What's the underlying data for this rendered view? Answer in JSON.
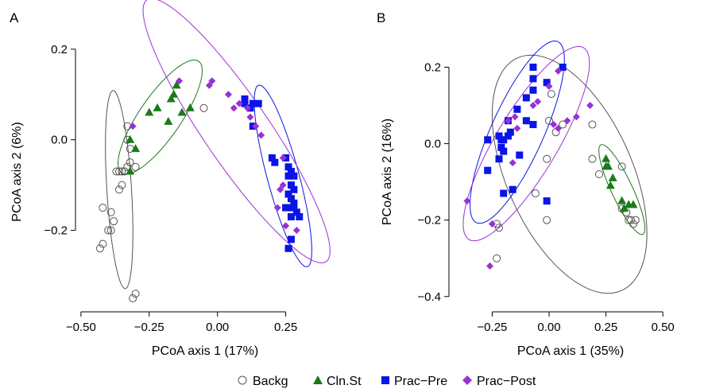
{
  "colors": {
    "Backg": "#555555",
    "Cln.St": "#1a7a1a",
    "Prac-Pre": "#0a14e6",
    "Prac-Post": "#9a30d6"
  },
  "legend": [
    {
      "label": "Backg",
      "shape": "open-circle",
      "color_key": "Backg"
    },
    {
      "label": "Cln.St",
      "shape": "triangle",
      "color_key": "Cln.St"
    },
    {
      "label": "Prac−Pre",
      "shape": "square",
      "color_key": "Prac-Pre"
    },
    {
      "label": "Prac−Post",
      "shape": "diamond",
      "color_key": "Prac-Post"
    }
  ],
  "chart_data": [
    {
      "type": "scatter",
      "panel_label": "A",
      "xlabel": "PCoA axis 1 (17%)",
      "ylabel": "PCoA axis 2 (6%)",
      "xlim": [
        -0.52,
        0.42
      ],
      "ylim": [
        -0.38,
        0.27
      ],
      "xticks": [
        -0.5,
        -0.25,
        0.0,
        0.25
      ],
      "xtick_labels": [
        "−0.50",
        "−0.25",
        "0.00",
        "0.25"
      ],
      "yticks": [
        -0.2,
        0.0,
        0.2
      ],
      "ytick_labels": [
        "−0.2",
        "0.0",
        "0.2"
      ],
      "series": [
        {
          "name": "Backg",
          "points": [
            [
              -0.33,
              0.03
            ],
            [
              -0.33,
              0.0
            ],
            [
              -0.32,
              -0.02
            ],
            [
              -0.3,
              -0.06
            ],
            [
              -0.32,
              -0.05
            ],
            [
              -0.33,
              -0.06
            ],
            [
              -0.34,
              -0.07
            ],
            [
              -0.35,
              -0.07
            ],
            [
              -0.36,
              -0.07
            ],
            [
              -0.37,
              -0.07
            ],
            [
              -0.35,
              -0.1
            ],
            [
              -0.36,
              -0.11
            ],
            [
              -0.42,
              -0.15
            ],
            [
              -0.39,
              -0.16
            ],
            [
              -0.38,
              -0.18
            ],
            [
              -0.39,
              -0.2
            ],
            [
              -0.4,
              -0.2
            ],
            [
              -0.42,
              -0.23
            ],
            [
              -0.43,
              -0.24
            ],
            [
              -0.3,
              -0.34
            ],
            [
              -0.31,
              -0.35
            ],
            [
              -0.05,
              0.07
            ]
          ]
        },
        {
          "name": "Cln.St",
          "points": [
            [
              -0.15,
              0.12
            ],
            [
              -0.16,
              0.1
            ],
            [
              -0.17,
              0.09
            ],
            [
              -0.22,
              0.07
            ],
            [
              -0.25,
              0.06
            ],
            [
              -0.1,
              0.07
            ],
            [
              -0.13,
              0.06
            ],
            [
              -0.18,
              0.04
            ],
            [
              -0.32,
              0.0
            ],
            [
              -0.3,
              -0.02
            ],
            [
              -0.32,
              -0.07
            ]
          ]
        },
        {
          "name": "Prac-Pre",
          "points": [
            [
              0.1,
              0.09
            ],
            [
              0.1,
              0.08
            ],
            [
              0.13,
              0.08
            ],
            [
              0.15,
              0.08
            ],
            [
              0.12,
              0.07
            ],
            [
              0.13,
              0.03
            ],
            [
              0.2,
              -0.04
            ],
            [
              0.21,
              -0.05
            ],
            [
              0.25,
              -0.04
            ],
            [
              0.26,
              -0.06
            ],
            [
              0.27,
              -0.07
            ],
            [
              0.28,
              -0.08
            ],
            [
              0.26,
              -0.08
            ],
            [
              0.27,
              -0.1
            ],
            [
              0.28,
              -0.11
            ],
            [
              0.26,
              -0.12
            ],
            [
              0.27,
              -0.13
            ],
            [
              0.28,
              -0.14
            ],
            [
              0.25,
              -0.15
            ],
            [
              0.27,
              -0.15
            ],
            [
              0.28,
              -0.15
            ],
            [
              0.29,
              -0.16
            ],
            [
              0.27,
              -0.17
            ],
            [
              0.3,
              -0.17
            ],
            [
              0.27,
              -0.22
            ],
            [
              0.26,
              -0.24
            ]
          ]
        },
        {
          "name": "Prac-Post",
          "points": [
            [
              -0.31,
              0.03
            ],
            [
              -0.14,
              0.13
            ],
            [
              -0.02,
              0.13
            ],
            [
              -0.03,
              0.12
            ],
            [
              0.04,
              0.1
            ],
            [
              0.08,
              0.08
            ],
            [
              0.06,
              0.07
            ],
            [
              0.11,
              0.07
            ],
            [
              0.12,
              0.05
            ],
            [
              0.14,
              0.03
            ],
            [
              0.16,
              0.01
            ],
            [
              0.24,
              -0.04
            ],
            [
              0.24,
              -0.1
            ],
            [
              0.23,
              -0.11
            ],
            [
              0.22,
              -0.15
            ],
            [
              0.25,
              -0.19
            ],
            [
              0.29,
              -0.2
            ]
          ]
        }
      ],
      "ellipses": [
        {
          "series": "Backg",
          "cx": -0.36,
          "cy": -0.11,
          "rx": 0.22,
          "ry": 0.045,
          "angle_deg": -84
        },
        {
          "series": "Cln.St",
          "cx": -0.21,
          "cy": 0.05,
          "rx": 0.19,
          "ry": 0.06,
          "angle_deg": 38
        },
        {
          "series": "Prac-Pre",
          "cx": 0.24,
          "cy": -0.08,
          "rx": 0.22,
          "ry": 0.055,
          "angle_deg": -65
        },
        {
          "series": "Prac-Post",
          "cx": 0.07,
          "cy": 0.02,
          "rx": 0.44,
          "ry": 0.095,
          "angle_deg": -40
        }
      ]
    },
    {
      "type": "scatter",
      "panel_label": "B",
      "xlabel": "PCoA axis 1 (35%)",
      "ylabel": "PCoA axis 2 (16%)",
      "xlim": [
        -0.44,
        0.66
      ],
      "ylim": [
        -0.44,
        0.33
      ],
      "xticks": [
        -0.25,
        0.0,
        0.25,
        0.5
      ],
      "xtick_labels": [
        "−0.25",
        "0.00",
        "0.25",
        "0.50"
      ],
      "yticks": [
        -0.4,
        -0.2,
        0.0,
        0.2
      ],
      "ytick_labels": [
        "−0.4",
        "−0.2",
        "0.0",
        "0.2"
      ],
      "series": [
        {
          "name": "Backg",
          "points": [
            [
              0.01,
              0.13
            ],
            [
              0.03,
              0.03
            ],
            [
              0.06,
              0.05
            ],
            [
              0.0,
              0.06
            ],
            [
              0.19,
              0.05
            ],
            [
              -0.01,
              -0.04
            ],
            [
              0.19,
              -0.04
            ],
            [
              0.22,
              -0.08
            ],
            [
              0.32,
              -0.06
            ],
            [
              0.32,
              -0.17
            ],
            [
              0.34,
              -0.18
            ],
            [
              0.35,
              -0.2
            ],
            [
              0.36,
              -0.2
            ],
            [
              0.37,
              -0.21
            ],
            [
              0.38,
              -0.2
            ],
            [
              -0.01,
              -0.2
            ],
            [
              -0.06,
              -0.13
            ],
            [
              -0.23,
              -0.21
            ],
            [
              -0.22,
              -0.22
            ],
            [
              -0.23,
              -0.3
            ]
          ]
        },
        {
          "name": "Cln.St",
          "points": [
            [
              0.25,
              -0.04
            ],
            [
              0.26,
              -0.06
            ],
            [
              0.25,
              -0.06
            ],
            [
              0.28,
              -0.09
            ],
            [
              0.27,
              -0.11
            ],
            [
              0.32,
              -0.15
            ],
            [
              0.35,
              -0.16
            ],
            [
              0.37,
              -0.16
            ],
            [
              0.33,
              -0.17
            ]
          ]
        },
        {
          "name": "Prac-Pre",
          "points": [
            [
              0.06,
              0.2
            ],
            [
              -0.01,
              0.16
            ],
            [
              -0.07,
              0.2
            ],
            [
              -0.07,
              0.17
            ],
            [
              -0.07,
              0.14
            ],
            [
              -0.1,
              0.12
            ],
            [
              -0.14,
              0.09
            ],
            [
              -0.18,
              0.06
            ],
            [
              -0.1,
              0.06
            ],
            [
              -0.07,
              0.05
            ],
            [
              -0.22,
              0.02
            ],
            [
              -0.21,
              0.01
            ],
            [
              -0.2,
              0.01
            ],
            [
              -0.21,
              -0.01
            ],
            [
              -0.27,
              0.01
            ],
            [
              -0.18,
              0.02
            ],
            [
              -0.17,
              0.03
            ],
            [
              -0.2,
              -0.02
            ],
            [
              -0.22,
              -0.04
            ],
            [
              -0.13,
              -0.03
            ],
            [
              -0.27,
              -0.07
            ],
            [
              -0.16,
              -0.12
            ],
            [
              -0.2,
              -0.13
            ],
            [
              -0.01,
              -0.15
            ]
          ]
        },
        {
          "name": "Prac-Post",
          "points": [
            [
              0.04,
              0.19
            ],
            [
              0.0,
              0.15
            ],
            [
              -0.05,
              0.11
            ],
            [
              -0.07,
              0.1
            ],
            [
              -0.15,
              0.07
            ],
            [
              -0.18,
              0.06
            ],
            [
              -0.14,
              0.04
            ],
            [
              -0.16,
              -0.05
            ],
            [
              0.04,
              0.04
            ],
            [
              0.08,
              0.06
            ],
            [
              0.12,
              0.07
            ],
            [
              0.18,
              0.1
            ],
            [
              0.02,
              0.05
            ],
            [
              -0.36,
              -0.15
            ],
            [
              -0.25,
              -0.21
            ],
            [
              -0.26,
              -0.32
            ]
          ]
        }
      ],
      "ellipses": [
        {
          "series": "Backg",
          "cx": 0.09,
          "cy": -0.08,
          "rx": 0.4,
          "ry": 0.23,
          "angle_deg": -40
        },
        {
          "series": "Cln.St",
          "cx": 0.32,
          "cy": -0.12,
          "rx": 0.15,
          "ry": 0.04,
          "angle_deg": -50
        },
        {
          "series": "Prac-Pre",
          "cx": -0.14,
          "cy": 0.03,
          "rx": 0.3,
          "ry": 0.1,
          "angle_deg": 50
        },
        {
          "series": "Prac-Post",
          "cx": -0.1,
          "cy": 0.0,
          "rx": 0.36,
          "ry": 0.11,
          "angle_deg": 42
        }
      ]
    }
  ]
}
